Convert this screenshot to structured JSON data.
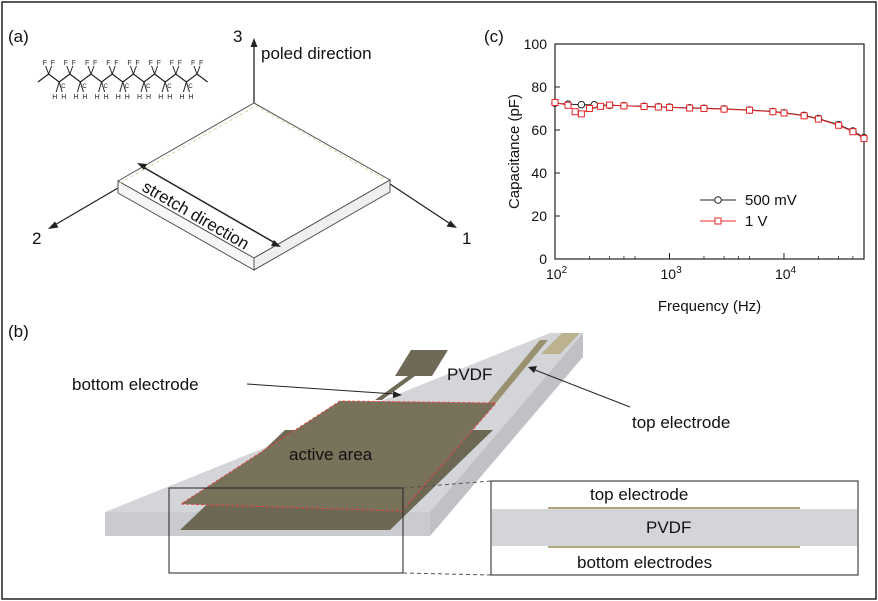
{
  "panel_a": {
    "label": "(a)",
    "axis_3": "3",
    "axis_2": "2",
    "axis_1": "1",
    "poled_direction": "poled direction",
    "stretch_direction": "stretch direction",
    "molecule_top_atom": "F",
    "molecule_bottom_atom": "H",
    "molecule_backbone_atom": "C"
  },
  "panel_b": {
    "label": "(b)",
    "bottom_electrode": "bottom electrode",
    "top_electrode": "top electrode",
    "pvdf": "PVDF",
    "active_area": "active area",
    "inset": {
      "top_electrode": "top electrode",
      "pvdf": "PVDF",
      "bottom_electrodes": "bottom electrodes"
    }
  },
  "panel_c": {
    "label": "(c)"
  },
  "colors": {
    "film": "#d3d5d9",
    "film_side": "#c6c8cc",
    "electrode": "#6f6a58",
    "electrode_light": "#bcb28f",
    "series_500mV": "#222222",
    "series_1V": "#e8262a"
  },
  "chart_data": {
    "type": "scatter",
    "title": "",
    "xlabel": "Frequency (Hz)",
    "ylabel": "Capacitance (pF)",
    "x_scale": "log",
    "xlim": [
      100,
      50000
    ],
    "ylim": [
      0,
      100
    ],
    "yticks": [
      "0",
      "20",
      "40",
      "60",
      "80",
      "100"
    ],
    "xticks": [
      {
        "base": "10",
        "exp": "2",
        "value": 100
      },
      {
        "base": "10",
        "exp": "3",
        "value": 1000
      },
      {
        "base": "10",
        "exp": "4",
        "value": 10000
      }
    ],
    "legend_position": "lower-right",
    "grid": false,
    "series": [
      {
        "name": "500 mV",
        "marker": "circle",
        "x": [
          100,
          130,
          170,
          220,
          300,
          400,
          600,
          800,
          1000,
          1500,
          2000,
          3000,
          5000,
          8000,
          10000,
          15000,
          20000,
          30000,
          40000,
          50000
        ],
        "y": [
          72.5,
          72,
          71.8,
          71.7,
          71.5,
          71.3,
          71,
          70.8,
          70.6,
          70.3,
          70.1,
          69.8,
          69.3,
          68.6,
          68,
          66.8,
          65.3,
          62.5,
          59.5,
          56.5
        ]
      },
      {
        "name": "1 V",
        "marker": "square",
        "x": [
          100,
          130,
          150,
          170,
          200,
          250,
          300,
          400,
          600,
          800,
          1000,
          1500,
          2000,
          3000,
          5000,
          8000,
          10000,
          15000,
          20000,
          30000,
          40000,
          50000
        ],
        "y": [
          72.8,
          71.5,
          68.5,
          67.5,
          70,
          71,
          71.6,
          71.2,
          70.9,
          70.7,
          70.5,
          70.2,
          70,
          69.7,
          69.2,
          68.5,
          67.9,
          66.6,
          65.1,
          62.2,
          59.2,
          56
        ]
      }
    ]
  }
}
